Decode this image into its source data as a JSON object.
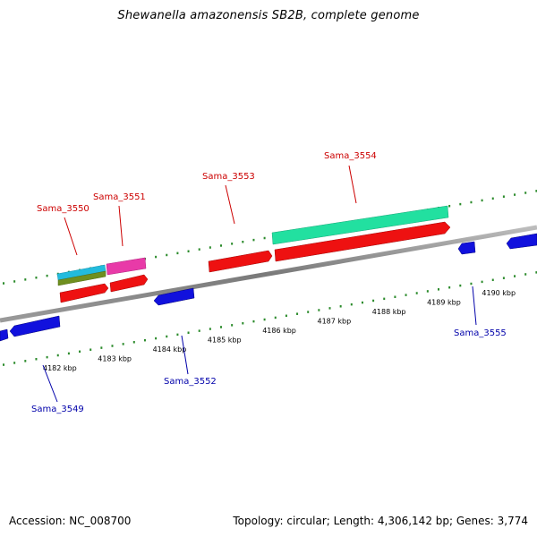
{
  "title": "Shewanella amazonensis SB2B, complete genome",
  "footer": {
    "accession": "Accession: NC_008700",
    "summary": "Topology: circular; Length: 4,306,142 bp; Genes: 3,774"
  },
  "axis": {
    "unit": "kbp",
    "ticks": [
      4182,
      4183,
      4184,
      4185,
      4186,
      4187,
      4188,
      4189,
      4190
    ],
    "tick_labels": [
      "4182 kbp",
      "4183 kbp",
      "4184 kbp",
      "4185 kbp",
      "4186 kbp",
      "4187 kbp",
      "4188 kbp",
      "4189 kbp",
      "4190 kbp"
    ]
  },
  "colors": {
    "backbone": "#8a8a8a",
    "tick": "#2a8a2a",
    "forward_label": "#cc0000",
    "reverse_label": "#0000aa",
    "forward_gene": "#ee1111",
    "reverse_gene": "#1111dd",
    "cyan": "#22bbdd",
    "olive": "#6f8f1f",
    "magenta": "#e83aa8",
    "teal": "#22e0a0"
  },
  "labels": {
    "Sama_3549": "Sama_3549",
    "Sama_3550": "Sama_3550",
    "Sama_3551": "Sama_3551",
    "Sama_3552": "Sama_3552",
    "Sama_3553": "Sama_3553",
    "Sama_3554": "Sama_3554",
    "Sama_3555": "Sama_3555"
  }
}
